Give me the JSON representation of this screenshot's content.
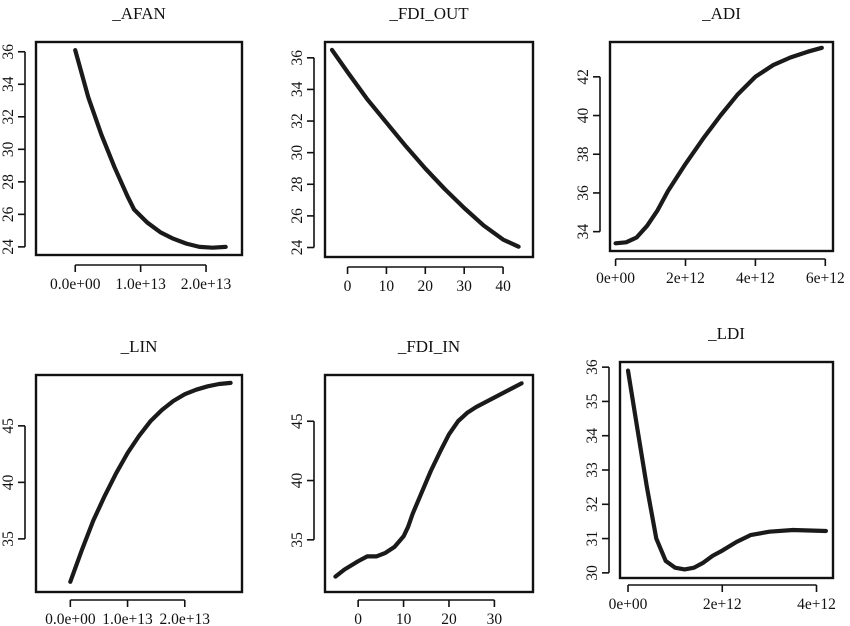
{
  "chart_data": [
    {
      "type": "line",
      "title": "_AFAN",
      "x_ticks": [
        {
          "v": 0,
          "label": "0.0e+00"
        },
        {
          "v": 10000000000000.0,
          "label": "1.0e+13"
        },
        {
          "v": 20000000000000.0,
          "label": "2.0e+13"
        }
      ],
      "y_ticks": [
        {
          "v": 24,
          "label": "24"
        },
        {
          "v": 26,
          "label": "26"
        },
        {
          "v": 28,
          "label": "28"
        },
        {
          "v": 30,
          "label": "30"
        },
        {
          "v": 32,
          "label": "32"
        },
        {
          "v": 34,
          "label": "34"
        },
        {
          "v": 36,
          "label": "36"
        }
      ],
      "xlim": [
        -6000000000000.0,
        25500000000000.0
      ],
      "ylim": [
        23.5,
        36.6
      ],
      "x": [
        0,
        2000000000000.0,
        4000000000000.0,
        6000000000000.0,
        8000000000000.0,
        9000000000000.0,
        11000000000000.0,
        13000000000000.0,
        15000000000000.0,
        17000000000000.0,
        19000000000000.0,
        21000000000000.0,
        23000000000000.0
      ],
      "y": [
        36.1,
        33.2,
        30.9,
        28.9,
        27.1,
        26.3,
        25.5,
        24.9,
        24.5,
        24.2,
        24.0,
        23.95,
        24.0
      ]
    },
    {
      "type": "line",
      "title": "_FDI_OUT",
      "x_ticks": [
        {
          "v": 0,
          "label": "0"
        },
        {
          "v": 10,
          "label": "10"
        },
        {
          "v": 20,
          "label": "20"
        },
        {
          "v": 30,
          "label": "30"
        },
        {
          "v": 40,
          "label": "40"
        }
      ],
      "y_ticks": [
        {
          "v": 24,
          "label": "24"
        },
        {
          "v": 26,
          "label": "26"
        },
        {
          "v": 28,
          "label": "28"
        },
        {
          "v": 30,
          "label": "30"
        },
        {
          "v": 32,
          "label": "32"
        },
        {
          "v": 34,
          "label": "34"
        },
        {
          "v": 36,
          "label": "36"
        }
      ],
      "xlim": [
        -5.8,
        47.7
      ],
      "ylim": [
        23.4,
        37.0
      ],
      "x": [
        -4,
        0,
        5,
        10,
        15,
        20,
        25,
        30,
        35,
        40,
        44
      ],
      "y": [
        36.5,
        35.1,
        33.4,
        31.9,
        30.4,
        29.0,
        27.7,
        26.5,
        25.4,
        24.5,
        24.05
      ]
    },
    {
      "type": "line",
      "title": "_ADI",
      "x_ticks": [
        {
          "v": 0,
          "label": "0e+00"
        },
        {
          "v": 2000000000000.0,
          "label": "2e+12"
        },
        {
          "v": 4000000000000.0,
          "label": "4e+12"
        },
        {
          "v": 6000000000000.0,
          "label": "6e+12"
        }
      ],
      "y_ticks": [
        {
          "v": 34,
          "label": "34"
        },
        {
          "v": 36,
          "label": "36"
        },
        {
          "v": 38,
          "label": "38"
        },
        {
          "v": 40,
          "label": "40"
        },
        {
          "v": 42,
          "label": "42"
        }
      ],
      "xlim": [
        -160000000000.0,
        6220000000000.0
      ],
      "ylim": [
        33.0,
        43.8
      ],
      "x": [
        0,
        300000000000.0,
        600000000000.0,
        900000000000.0,
        1200000000000.0,
        1500000000000.0,
        2000000000000.0,
        2500000000000.0,
        3000000000000.0,
        3500000000000.0,
        4000000000000.0,
        4500000000000.0,
        5000000000000.0,
        5500000000000.0,
        5900000000000.0
      ],
      "y": [
        33.4,
        33.45,
        33.7,
        34.3,
        35.1,
        36.1,
        37.5,
        38.8,
        40.0,
        41.1,
        42.0,
        42.6,
        43.0,
        43.3,
        43.5
      ]
    },
    {
      "type": "line",
      "title": "_LIN",
      "x_ticks": [
        {
          "v": 0,
          "label": "0.0e+00"
        },
        {
          "v": 10000000000000.0,
          "label": "1.0e+13"
        },
        {
          "v": 20000000000000.0,
          "label": "2.0e+13"
        }
      ],
      "y_ticks": [
        {
          "v": 35,
          "label": "35"
        },
        {
          "v": 40,
          "label": "40"
        },
        {
          "v": 45,
          "label": "45"
        }
      ],
      "xlim": [
        -6000000000000.0,
        30000000000000.0
      ],
      "ylim": [
        30.3,
        49.5
      ],
      "x": [
        0,
        2000000000000.0,
        4000000000000.0,
        6000000000000.0,
        8000000000000.0,
        10000000000000.0,
        12000000000000.0,
        14000000000000.0,
        16000000000000.0,
        18000000000000.0,
        20000000000000.0,
        22000000000000.0,
        24000000000000.0,
        26000000000000.0,
        28000000000000.0
      ],
      "y": [
        31.2,
        34.0,
        36.6,
        38.8,
        40.8,
        42.6,
        44.1,
        45.4,
        46.4,
        47.2,
        47.8,
        48.2,
        48.5,
        48.7,
        48.8
      ]
    },
    {
      "type": "line",
      "title": "_FDI_IN",
      "x_ticks": [
        {
          "v": 0,
          "label": "0"
        },
        {
          "v": 10,
          "label": "10"
        },
        {
          "v": 20,
          "label": "20"
        },
        {
          "v": 30,
          "label": "30"
        }
      ],
      "y_ticks": [
        {
          "v": 35,
          "label": "35"
        },
        {
          "v": 40,
          "label": "40"
        },
        {
          "v": 45,
          "label": "45"
        }
      ],
      "xlim": [
        -7.3,
        38.5
      ],
      "ylim": [
        30.6,
        48.9
      ],
      "x": [
        -5,
        -3,
        0,
        2,
        4,
        6,
        8,
        10,
        11,
        12,
        14,
        16,
        18,
        20,
        22,
        24,
        26,
        28,
        30,
        32,
        34,
        36
      ],
      "y": [
        31.9,
        32.5,
        33.2,
        33.6,
        33.6,
        33.9,
        34.4,
        35.3,
        36.1,
        37.2,
        39.0,
        40.8,
        42.4,
        43.9,
        45.0,
        45.7,
        46.2,
        46.6,
        47.0,
        47.4,
        47.8,
        48.2
      ]
    },
    {
      "type": "line",
      "title": "_LDI",
      "x_ticks": [
        {
          "v": 0,
          "label": "0e+00"
        },
        {
          "v": 2000000000000.0,
          "label": "2e+12"
        },
        {
          "v": 4000000000000.0,
          "label": "4e+12"
        }
      ],
      "y_ticks": [
        {
          "v": 30,
          "label": "30"
        },
        {
          "v": 31,
          "label": "31"
        },
        {
          "v": 32,
          "label": "32"
        },
        {
          "v": 33,
          "label": "33"
        },
        {
          "v": 34,
          "label": "34"
        },
        {
          "v": 35,
          "label": "35"
        },
        {
          "v": 36,
          "label": "36"
        }
      ],
      "xlim": [
        -170000000000.0,
        4350000000000.0
      ],
      "ylim": [
        29.85,
        36.15
      ],
      "x": [
        0,
        200000000000.0,
        400000000000.0,
        600000000000.0,
        800000000000.0,
        1000000000000.0,
        1200000000000.0,
        1400000000000.0,
        1600000000000.0,
        1800000000000.0,
        2000000000000.0,
        2300000000000.0,
        2600000000000.0,
        3000000000000.0,
        3500000000000.0,
        4200000000000.0
      ],
      "y": [
        35.9,
        34.2,
        32.5,
        31.0,
        30.35,
        30.15,
        30.1,
        30.15,
        30.3,
        30.5,
        30.65,
        30.9,
        31.1,
        31.2,
        31.25,
        31.22
      ]
    }
  ]
}
